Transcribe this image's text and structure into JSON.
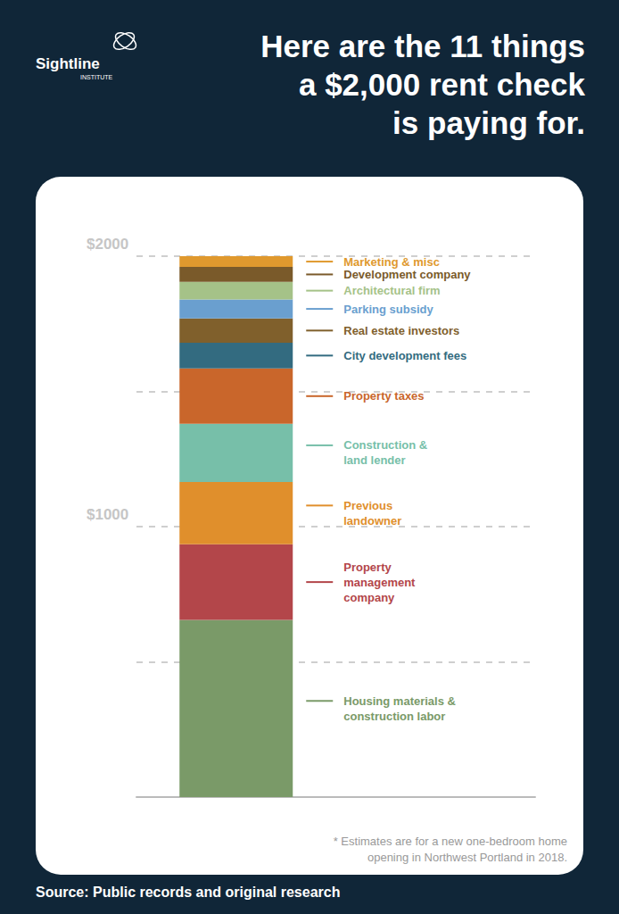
{
  "chart_data": {
    "type": "bar",
    "title": "Here are the 11 things\na $2,000 rent check\nis paying for.",
    "logo": "Sightline",
    "logo_subtitle": "INSTITUTE",
    "footnote": "* Estimates are for a new one-bedroom home\nopening in Northwest Portland in 2018.",
    "source": "Source: Public records and original research",
    "categories": [
      null
    ],
    "series": [
      {
        "name": "Housing materials &\nconstruction labor",
        "color": "#7a9a68",
        "values": [
          655
        ]
      },
      {
        "name": "Property\nmanagement\ncompany",
        "color": "#b3464a",
        "values": [
          280
        ]
      },
      {
        "name": "Previous\nlandowner",
        "color": "#e08f2c",
        "values": [
          230
        ]
      },
      {
        "name": "Construction &\nland lender",
        "color": "#77bfa9",
        "values": [
          215
        ]
      },
      {
        "name": "Property taxes",
        "color": "#c9662b",
        "values": [
          205
        ]
      },
      {
        "name": "City development fees",
        "color": "#336b80",
        "values": [
          95
        ]
      },
      {
        "name": "Real estate investors",
        "color": "#80602c",
        "values": [
          90
        ]
      },
      {
        "name": "Parking subsidy",
        "color": "#6a9fcf",
        "values": [
          70
        ]
      },
      {
        "name": "Architectural firm",
        "color": "#a5c288",
        "values": [
          65
        ]
      },
      {
        "name": "Development company",
        "color": "#7a5a2a",
        "values": [
          55
        ]
      },
      {
        "name": "Marketing & misc",
        "color": "#e0992e",
        "values": [
          40
        ]
      }
    ],
    "stacked": true,
    "ylim": [
      0,
      2000
    ],
    "yticks": [
      {
        "value": 1000,
        "label": "$1000"
      },
      {
        "value": 2000,
        "label": "$2000"
      }
    ],
    "grid": true,
    "tick_labels": "y"
  }
}
